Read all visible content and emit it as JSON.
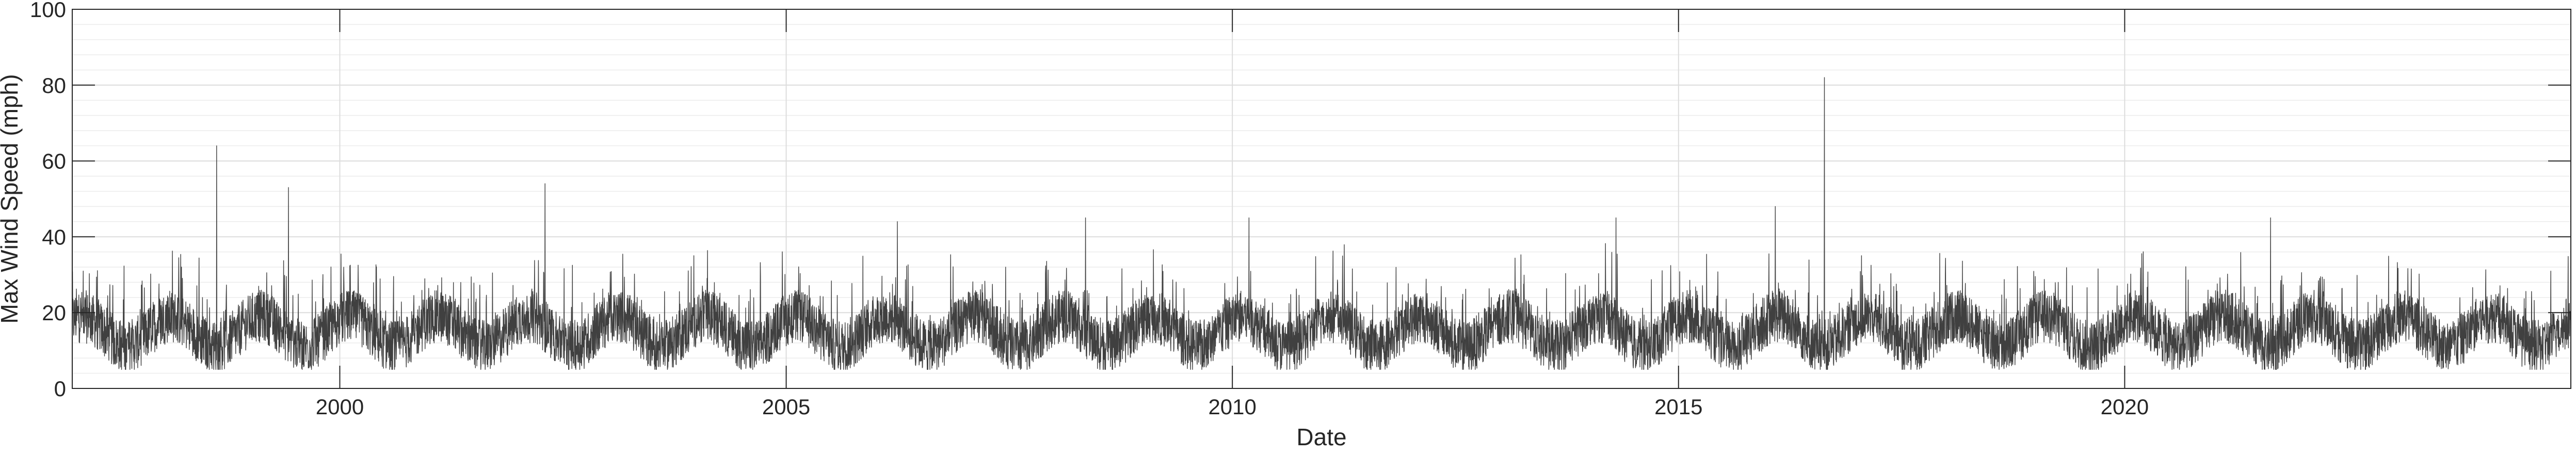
{
  "chart_data": {
    "type": "line",
    "title": "",
    "xlabel": "Date",
    "ylabel": "Max Wind Speed (mph)",
    "xlim": [
      "1997-01-01",
      "2024-12-31"
    ],
    "ylim": [
      0,
      100
    ],
    "x_ticks": [
      "2000",
      "2005",
      "2010",
      "2015",
      "2020"
    ],
    "y_ticks": [
      "0",
      "20",
      "40",
      "60",
      "80",
      "100"
    ],
    "grid": true,
    "minor_grid": true,
    "legend": "none",
    "line_color": "#404040",
    "series": [
      {
        "baseline_typical_range": [
          8,
          30
        ],
        "notable_peaks": [
          {
            "x": "1998-08-15",
            "y": 64
          },
          {
            "x": "1999-06-05",
            "y": 53
          },
          {
            "x": "2002-04-20",
            "y": 54
          },
          {
            "x": "2006-04-01",
            "y": 44
          },
          {
            "x": "2008-05-10",
            "y": 45
          },
          {
            "x": "2010-03-10",
            "y": 45
          },
          {
            "x": "2014-04-20",
            "y": 45
          },
          {
            "x": "2016-02-01",
            "y": 48
          },
          {
            "x": "2016-08-20",
            "y": 82
          },
          {
            "x": "2021-08-20",
            "y": 45
          }
        ]
      }
    ]
  }
}
